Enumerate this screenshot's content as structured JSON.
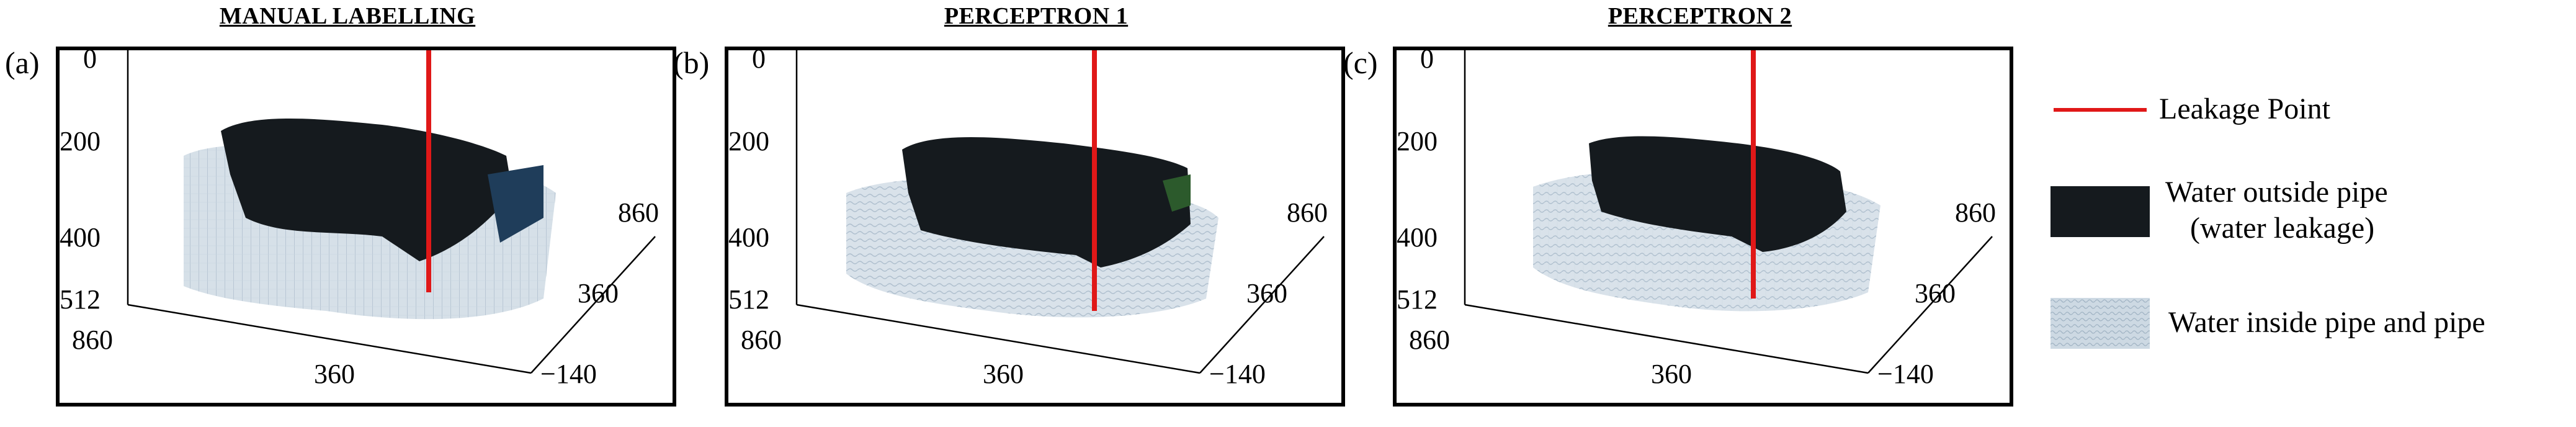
{
  "panels": [
    {
      "letter": "(a)",
      "title": "MANUAL  LABELLING"
    },
    {
      "letter": "(b)",
      "title": "PERCEPTRON  1"
    },
    {
      "letter": "(c)",
      "title": "PERCEPTRON  2"
    }
  ],
  "axes": {
    "vertical_ticks": [
      "0",
      "200",
      "400",
      "512"
    ],
    "left_depth_ticks": [
      "860",
      "360"
    ],
    "right_depth_ticks": [
      "860",
      "360",
      "−140"
    ]
  },
  "legend": {
    "leakage_point": "Leakage Point",
    "water_outside_line1": "Water outside pipe",
    "water_outside_line2": "(water leakage)",
    "water_inside": "Water inside pipe and pipe"
  },
  "colors": {
    "leakage": "#e01818",
    "water_outside": "#151a1e",
    "water_inside": "#b4c6d6"
  }
}
